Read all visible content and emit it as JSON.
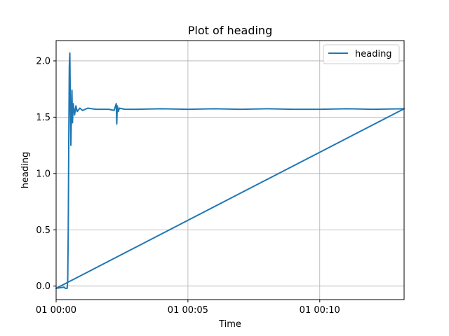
{
  "chart_data": {
    "type": "line",
    "title": "Plot of heading",
    "xlabel": "Time",
    "ylabel": "heading",
    "x_unit": "minutes",
    "xlim": [
      0,
      13.2
    ],
    "ylim": [
      -0.12,
      2.18
    ],
    "grid": true,
    "legend": "top-right",
    "x_ticks": [
      {
        "value": 0,
        "label": "01 00:00"
      },
      {
        "value": 5,
        "label": "01 00:05"
      },
      {
        "value": 10,
        "label": "01 00:10"
      }
    ],
    "y_ticks": [
      {
        "value": 0.0,
        "label": "0.0"
      },
      {
        "value": 0.5,
        "label": "0.5"
      },
      {
        "value": 1.0,
        "label": "1.0"
      },
      {
        "value": 1.5,
        "label": "1.5"
      },
      {
        "value": 2.0,
        "label": "2.0"
      }
    ],
    "series": [
      {
        "name": "heading",
        "color": "#1f77b4",
        "points": [
          [
            0,
            -0.02
          ],
          [
            0.3,
            -0.01
          ],
          [
            0.35,
            -0.02
          ],
          [
            0.42,
            -0.02
          ],
          [
            0.44,
            0.05
          ],
          [
            0.46,
            0.5
          ],
          [
            0.48,
            1.3
          ],
          [
            0.5,
            1.95
          ],
          [
            0.52,
            2.07
          ],
          [
            0.54,
            1.6
          ],
          [
            0.56,
            1.25
          ],
          [
            0.58,
            1.5
          ],
          [
            0.6,
            1.74
          ],
          [
            0.62,
            1.45
          ],
          [
            0.65,
            1.62
          ],
          [
            0.7,
            1.52
          ],
          [
            0.75,
            1.6
          ],
          [
            0.8,
            1.55
          ],
          [
            0.9,
            1.58
          ],
          [
            1.0,
            1.56
          ],
          [
            1.2,
            1.58
          ],
          [
            1.5,
            1.57
          ],
          [
            1.8,
            1.57
          ],
          [
            2.0,
            1.57
          ],
          [
            2.2,
            1.56
          ],
          [
            2.28,
            1.62
          ],
          [
            2.3,
            1.44
          ],
          [
            2.32,
            1.6
          ],
          [
            2.36,
            1.55
          ],
          [
            2.4,
            1.58
          ],
          [
            2.6,
            1.57
          ],
          [
            3.0,
            1.57
          ],
          [
            4.0,
            1.575
          ],
          [
            5.0,
            1.57
          ],
          [
            6.0,
            1.575
          ],
          [
            7.0,
            1.57
          ],
          [
            8.0,
            1.575
          ],
          [
            9.0,
            1.57
          ],
          [
            10.0,
            1.57
          ],
          [
            11.0,
            1.575
          ],
          [
            12.0,
            1.57
          ],
          [
            13.2,
            1.575
          ],
          [
            0,
            -0.02
          ],
          [
            13.2,
            1.575
          ]
        ]
      }
    ]
  }
}
